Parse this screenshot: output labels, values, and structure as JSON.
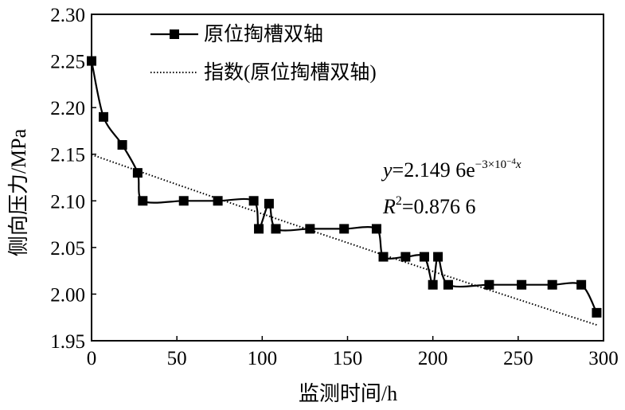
{
  "chart_data": {
    "type": "line",
    "xlabel": "监测时间/h",
    "ylabel": "侧向压力/MPa",
    "xlim": [
      0,
      300
    ],
    "ylim": [
      1.95,
      2.3
    ],
    "xticks": [
      "0",
      "50",
      "100",
      "150",
      "200",
      "250",
      "300"
    ],
    "yticks": [
      "1.95",
      "2.00",
      "2.05",
      "2.10",
      "2.15",
      "2.20",
      "2.25",
      "2.30"
    ],
    "grid": false,
    "legend_position": "top-left",
    "series": [
      {
        "name": "原位掏槽双轴",
        "style": "line-with-square-markers",
        "x": [
          0,
          7,
          18,
          27,
          30,
          54,
          74,
          95,
          98,
          104,
          108,
          128,
          148,
          167,
          171,
          184,
          195,
          200,
          203,
          209,
          233,
          252,
          270,
          287,
          296
        ],
        "y": [
          2.25,
          2.19,
          2.16,
          2.13,
          2.1,
          2.1,
          2.1,
          2.1,
          2.07,
          2.097,
          2.07,
          2.07,
          2.07,
          2.07,
          2.04,
          2.04,
          2.04,
          2.01,
          2.04,
          2.01,
          2.01,
          2.01,
          2.01,
          2.01,
          1.98
        ]
      },
      {
        "name": "指数(原位掏槽双轴)",
        "style": "dotted-trendline",
        "a": 2.1496,
        "b": -0.0003,
        "x_range": [
          0,
          296
        ]
      }
    ],
    "annotation": {
      "eq_y": "y",
      "eq_main": "=2.149 6e",
      "eq_exp_pre": "−3×10",
      "eq_exp_sup": "−4",
      "eq_exp_var": "x",
      "r_letter": "R",
      "r_sup": "2",
      "r_value": "=0.876 6"
    },
    "colors": {
      "line": "#000000",
      "marker": "#000000"
    }
  }
}
